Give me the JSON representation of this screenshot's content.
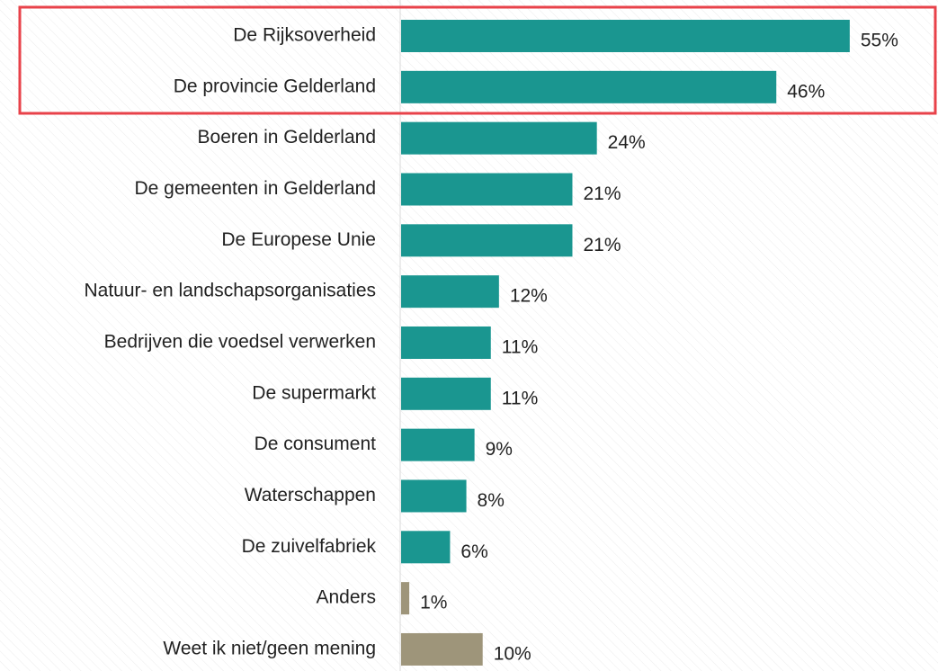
{
  "chart_data": {
    "type": "barh",
    "categories": [
      "De Rijksoverheid",
      "De provincie Gelderland",
      "Boeren in Gelderland",
      "De gemeenten in Gelderland",
      "De Europese Unie",
      "Natuur- en landschapsorganisaties",
      "Bedrijven die voedsel verwerken",
      "De supermarkt",
      "De consument",
      "Waterschappen",
      "De zuivelfabriek",
      "Anders",
      "Weet ik niet/geen mening"
    ],
    "values": [
      55,
      46,
      24,
      21,
      21,
      12,
      11,
      11,
      9,
      8,
      6,
      1,
      10
    ],
    "value_labels": [
      "55%",
      "46%",
      "24%",
      "21%",
      "21%",
      "12%",
      "11%",
      "11%",
      "9%",
      "8%",
      "6%",
      "1%",
      "10%"
    ],
    "colors": [
      "#1a9690",
      "#1a9690",
      "#1a9690",
      "#1a9690",
      "#1a9690",
      "#1a9690",
      "#1a9690",
      "#1a9690",
      "#1a9690",
      "#1a9690",
      "#1a9690",
      "#9e957a",
      "#9e957a"
    ]
  }
}
